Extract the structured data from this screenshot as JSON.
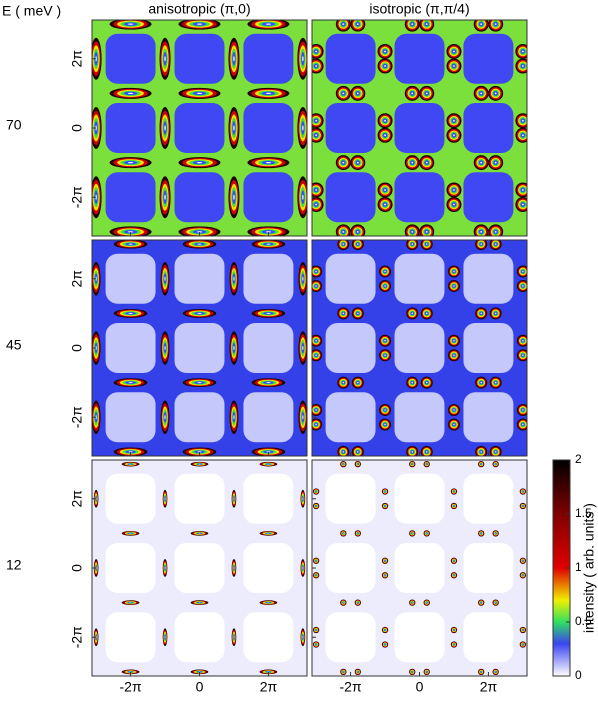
{
  "chart_data": {
    "type": "heatmap-grid",
    "row_axis_label": "E ( meV )",
    "columns": [
      "anisotropic  (π,0)",
      "isotropic  (π,π/4)"
    ],
    "rows": [
      70,
      45,
      12
    ],
    "xlim": [
      -9.8,
      9.8
    ],
    "ylim": [
      -9.8,
      9.8
    ],
    "xticks": [
      {
        "value": -6.283,
        "label": "-2π"
      },
      0,
      {
        "value": 6.283,
        "label": "2π"
      }
    ],
    "yticks": [
      {
        "value": -6.283,
        "label": "-2π"
      },
      0,
      {
        "value": 6.283,
        "label": "2π"
      }
    ],
    "colorbar": {
      "label": "intensity ( arb. units )",
      "lim": [
        0,
        2
      ],
      "ticks": [
        0,
        0.5,
        1,
        1.5,
        2
      ],
      "colormap": [
        {
          "value": 0,
          "color": "#ffffff"
        },
        {
          "value": 0.3,
          "color": "#3a44f0"
        },
        {
          "value": 0.5,
          "color": "#30e060"
        },
        {
          "value": 0.7,
          "color": "#f0f000"
        },
        {
          "value": 1,
          "color": "#e00000"
        },
        {
          "value": 1.5,
          "color": "#800000"
        },
        {
          "value": 2,
          "color": "#000000"
        }
      ]
    }
  }
}
